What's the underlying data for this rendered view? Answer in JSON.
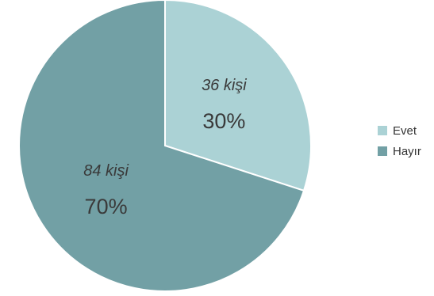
{
  "chart_data": {
    "type": "pie",
    "title": "",
    "start_angle_deg": 0,
    "direction": "clockwise",
    "slices": [
      {
        "label": "Evet",
        "value": 36,
        "percent": 30,
        "count_label": "36 kişi",
        "percent_label": "30%",
        "color": "#abd2d5"
      },
      {
        "label": "Hayır",
        "value": 84,
        "percent": 70,
        "count_label": "84 kişi",
        "percent_label": "70%",
        "color": "#72a0a5"
      }
    ],
    "legend_position": "right",
    "slice_border_color": "#ffffff"
  }
}
